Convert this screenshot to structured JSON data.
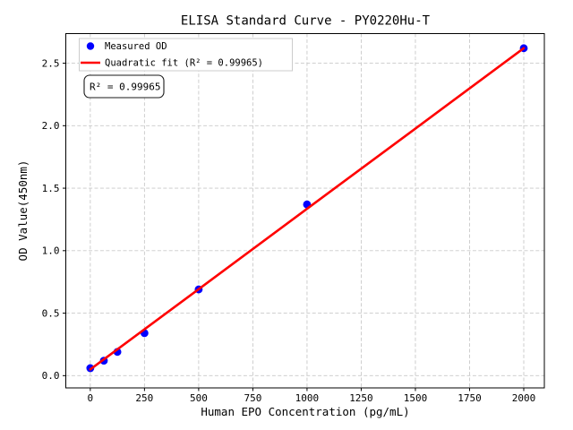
{
  "figure": {
    "background": "#ffffff"
  },
  "chart_data": {
    "type": "scatter",
    "title": "ELISA Standard Curve - PY0220Hu-T",
    "xlabel": "Human EPO Concentration (pg/mL)",
    "ylabel": "OD Value(450nm)",
    "xlim": [
      -113,
      2095
    ],
    "ylim": [
      -0.098,
      2.737
    ],
    "x_ticks": [
      0,
      250,
      500,
      750,
      1000,
      1250,
      1500,
      1750,
      2000
    ],
    "y_ticks": [
      0.0,
      0.5,
      1.0,
      1.5,
      2.0,
      2.5
    ],
    "y_tick_labels": [
      "0.0",
      "0.5",
      "1.0",
      "1.5",
      "2.0",
      "2.5"
    ],
    "grid": {
      "visible": true,
      "style": "dashed",
      "color": "#c9c9c9"
    },
    "frame_color": "#000000",
    "series": [
      {
        "name": "Measured OD",
        "type": "scatter",
        "marker": "circle",
        "color": "#0000ff",
        "points": [
          [
            0,
            0.06
          ],
          [
            62.5,
            0.12
          ],
          [
            125,
            0.19
          ],
          [
            250,
            0.34
          ],
          [
            500,
            0.69
          ],
          [
            1000,
            1.37
          ],
          [
            2000,
            2.62
          ]
        ]
      },
      {
        "name": "Quadratic fit (R² = 0.99965)",
        "type": "line",
        "color": "#ff0000",
        "fit": "quadratic",
        "r_squared": 0.99965,
        "line_points": [
          [
            0,
            0.05
          ],
          [
            500,
            0.692
          ],
          [
            1000,
            1.335
          ],
          [
            1500,
            1.977
          ],
          [
            2000,
            2.62
          ]
        ]
      }
    ],
    "legend": {
      "position": "upper left",
      "items": [
        {
          "label": "Measured OD",
          "marker": "dot",
          "color": "#0000ff"
        },
        {
          "label": "Quadratic fit (R² = 0.99965)",
          "marker": "line",
          "color": "#ff0000"
        }
      ]
    },
    "annotation": {
      "text": "R² = 0.99965"
    }
  }
}
